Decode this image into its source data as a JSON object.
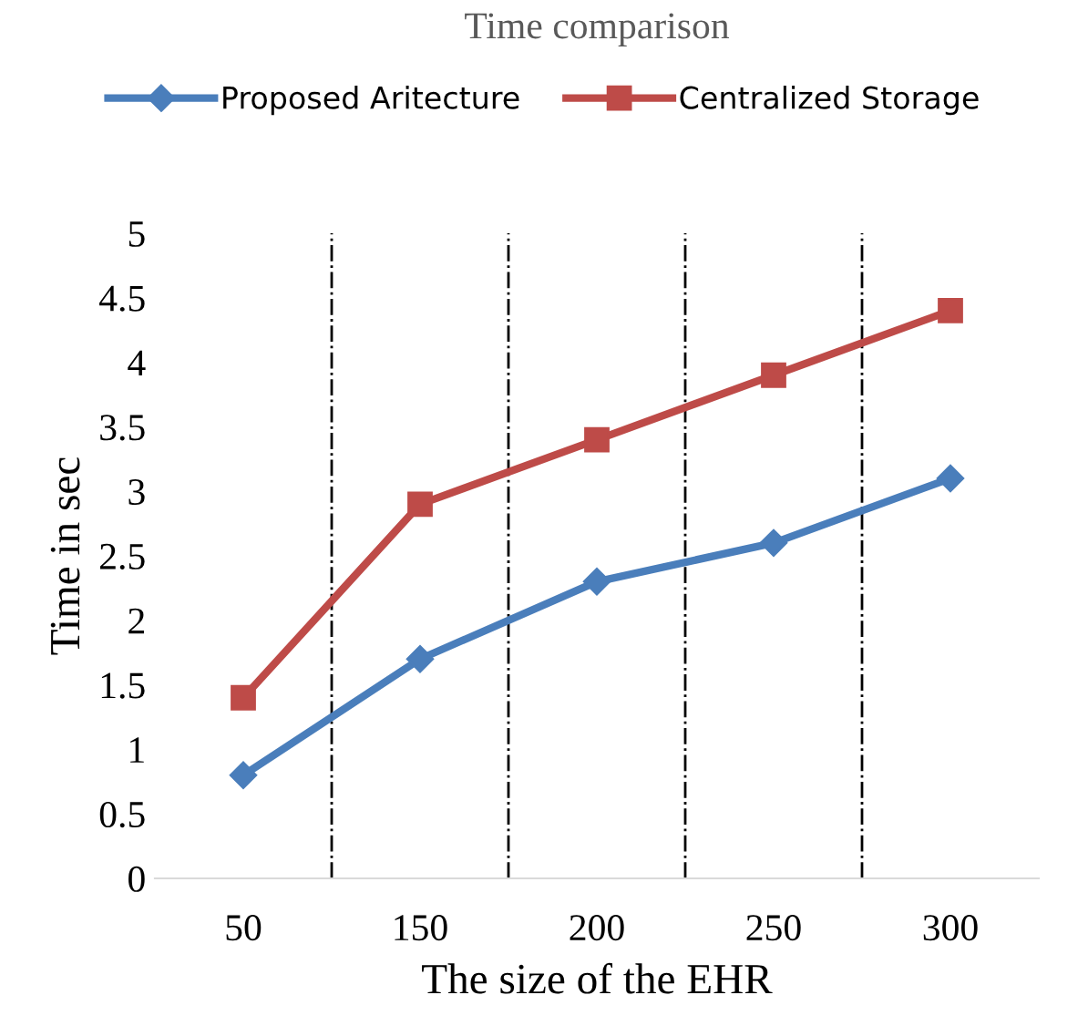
{
  "chart_data": {
    "type": "line",
    "title": "Time comparison",
    "xlabel": "The size of the EHR",
    "ylabel": "Time in sec",
    "categories": [
      "50",
      "150",
      "200",
      "250",
      "300"
    ],
    "series": [
      {
        "name": "Proposed Aritecture",
        "color": "#4a7ebb",
        "values": [
          0.8,
          1.7,
          2.3,
          2.6,
          3.1
        ],
        "marker": "diamond"
      },
      {
        "name": "Centralized Storage",
        "color": "#be4b48",
        "values": [
          1.4,
          2.9,
          3.4,
          3.9,
          4.4
        ],
        "marker": "square"
      }
    ],
    "ylim": [
      0,
      5
    ],
    "yticks": [
      0,
      0.5,
      1,
      1.5,
      2,
      2.5,
      3,
      3.5,
      4,
      4.5,
      5
    ],
    "grid": "x",
    "legend": "top",
    "line_style": "solid"
  }
}
